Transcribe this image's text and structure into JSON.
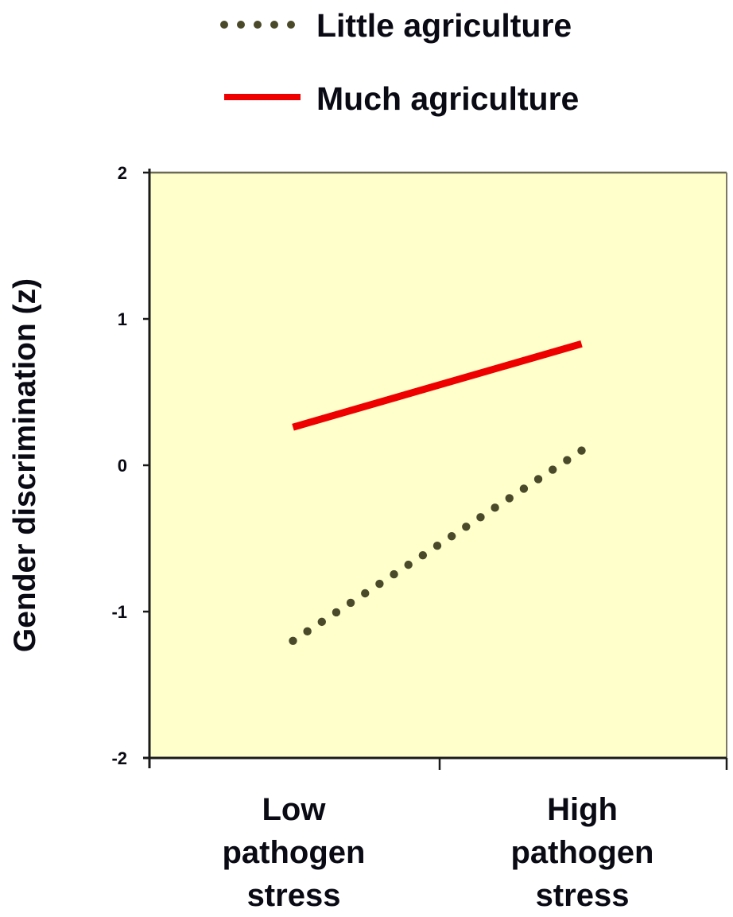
{
  "chart_data": {
    "type": "line",
    "title": "",
    "xlabel": "",
    "ylabel": "Gender discrimination (z)",
    "categories": [
      "Low pathogen stress",
      "High pathogen stress"
    ],
    "category_lines": [
      [
        "Low",
        "pathogen",
        "stress"
      ],
      [
        "High",
        "pathogen",
        "stress"
      ]
    ],
    "ylim": [
      -2,
      2
    ],
    "yticks": [
      2,
      1,
      0,
      -1,
      -2
    ],
    "ytick_labels": [
      "2",
      "1",
      "0",
      "-1",
      "-2"
    ],
    "grid": false,
    "legend_position": "top",
    "plot_background": "#ffffcc",
    "series": [
      {
        "name": "Little agriculture",
        "values": [
          -1.2,
          0.1
        ],
        "style": "dotted",
        "color": "#4a4a2a"
      },
      {
        "name": "Much agriculture",
        "values": [
          0.26,
          0.83
        ],
        "style": "solid",
        "color": "#ee0000"
      }
    ]
  },
  "legend": {
    "items": [
      {
        "label": "Little agriculture",
        "icon": "dotted-line-swatch-icon"
      },
      {
        "label": "Much agriculture",
        "icon": "solid-line-swatch-icon"
      }
    ]
  }
}
